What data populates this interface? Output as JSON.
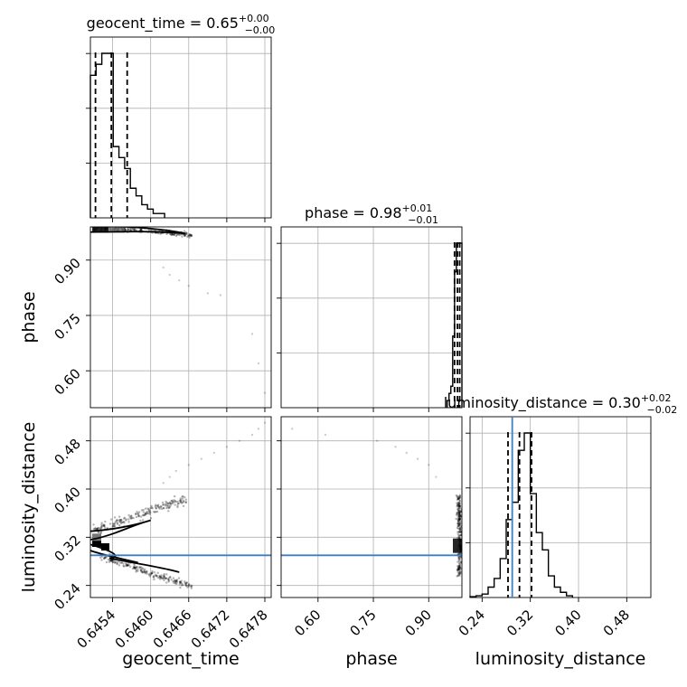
{
  "chart_data": {
    "type": "corner",
    "parameters": [
      "geocent_time",
      "phase",
      "luminosity_distance"
    ],
    "axis_labels": {
      "x": [
        "geocent_time",
        "phase",
        "luminosity_distance"
      ],
      "y": [
        "",
        "phase",
        "luminosity_distance"
      ]
    },
    "titles": [
      {
        "param": "geocent_time",
        "text": "geocent_time = 0.65",
        "sup": "+0.00",
        "sub": "−0.00"
      },
      {
        "param": "phase",
        "text": "phase = 0.98",
        "sup": "+0.01",
        "sub": "−0.01"
      },
      {
        "param": "luminosity_distance",
        "text": "luminosity_distance = 0.30",
        "sup": "+0.02",
        "sub": "−0.02"
      }
    ],
    "ranges": {
      "geocent_time": [
        0.64505,
        0.6479
      ],
      "phase": [
        0.5,
        0.99
      ],
      "luminosity_distance": [
        0.22,
        0.52
      ]
    },
    "ticks": {
      "geocent_time": [
        0.6454,
        0.646,
        0.6466,
        0.6472,
        0.6478
      ],
      "geocent_time_labels": [
        "0.6454",
        "0.6460",
        "0.6466",
        "0.6472",
        "0.6478"
      ],
      "phase": [
        0.6,
        0.75,
        0.9
      ],
      "phase_labels": [
        "0.60",
        "0.75",
        "0.90"
      ],
      "luminosity_distance": [
        0.24,
        0.32,
        0.4,
        0.48
      ],
      "luminosity_distance_labels": [
        "0.24",
        "0.32",
        "0.40",
        "0.48"
      ]
    },
    "quantiles": {
      "geocent_time": [
        0.64513,
        0.64538,
        0.64563
      ],
      "phase": [
        0.97,
        0.978,
        0.984
      ],
      "luminosity_distance": [
        0.283,
        0.302,
        0.322
      ]
    },
    "truths": {
      "luminosity_distance": 0.29
    },
    "histograms": {
      "geocent_time": {
        "edges": [
          0.64505,
          0.64514,
          0.64523,
          0.64532,
          0.64541,
          0.6455,
          0.64559,
          0.64568,
          0.64577,
          0.64586,
          0.64595,
          0.64604,
          0.64613,
          0.64622
        ],
        "counts": [
          130,
          140,
          150,
          150,
          65,
          55,
          45,
          27,
          20,
          12,
          8,
          4,
          4
        ]
      },
      "phase": {
        "edges": [
          0.95,
          0.955,
          0.96,
          0.965,
          0.97,
          0.975,
          0.98,
          0.985,
          0.99
        ],
        "counts": [
          10,
          20,
          30,
          100,
          190,
          230,
          230,
          230
        ]
      },
      "luminosity_distance": {
        "edges": [
          0.22,
          0.23,
          0.24,
          0.25,
          0.26,
          0.27,
          0.28,
          0.29,
          0.3,
          0.31,
          0.32,
          0.33,
          0.34,
          0.35,
          0.36,
          0.37,
          0.38,
          0.39
        ],
        "counts": [
          1,
          2,
          4,
          12,
          22,
          45,
          90,
          110,
          170,
          190,
          120,
          75,
          55,
          25,
          12,
          6,
          2
        ]
      }
    },
    "grid": true
  }
}
